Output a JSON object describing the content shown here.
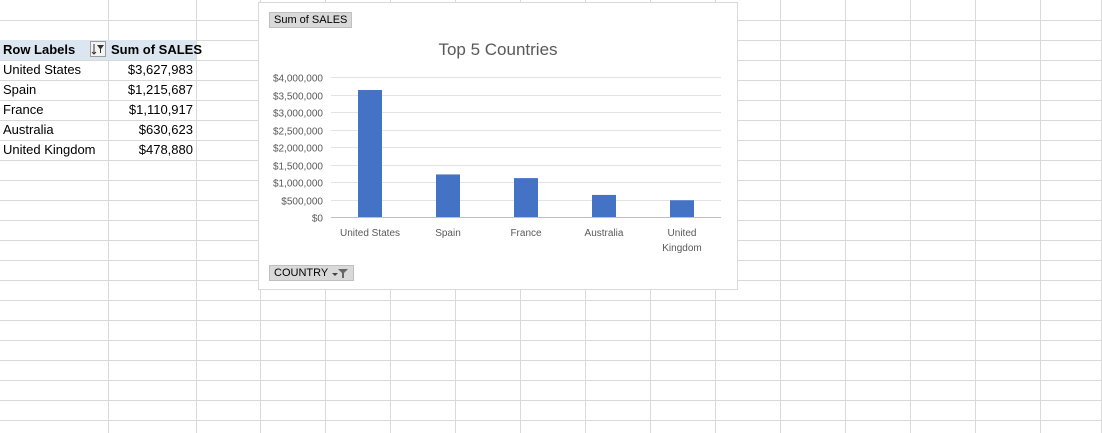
{
  "pivot": {
    "header_row_labels": "Row Labels",
    "header_value": "Sum of SALES",
    "rows": [
      {
        "label": "United States",
        "value": "$3,627,983"
      },
      {
        "label": "Spain",
        "value": "$1,215,687"
      },
      {
        "label": "France",
        "value": "$1,110,917"
      },
      {
        "label": "Australia",
        "value": "$630,623"
      },
      {
        "label": "United Kingdom",
        "value": "$478,880"
      }
    ]
  },
  "chart_buttons": {
    "value_field": "Sum of SALES",
    "axis_field": "COUNTRY"
  },
  "chart_data": {
    "type": "bar",
    "title": "Top 5 Countries",
    "categories": [
      "United States",
      "Spain",
      "France",
      "Australia",
      "United Kingdom"
    ],
    "category_lines": [
      [
        "United States"
      ],
      [
        "Spain"
      ],
      [
        "France"
      ],
      [
        "Australia"
      ],
      [
        "United",
        "Kingdom"
      ]
    ],
    "values": [
      3627983,
      1215687,
      1110917,
      630623,
      478880
    ],
    "ylim": [
      0,
      4000000
    ],
    "yticks": [
      0,
      500000,
      1000000,
      1500000,
      2000000,
      2500000,
      3000000,
      3500000,
      4000000
    ],
    "ytick_labels": [
      "$0",
      "$500,000",
      "$1,000,000",
      "$1,500,000",
      "$2,000,000",
      "$2,500,000",
      "$3,000,000",
      "$3,500,000",
      "$4,000,000"
    ],
    "bar_color": "#4472c4",
    "grid": true,
    "legend": "none"
  }
}
